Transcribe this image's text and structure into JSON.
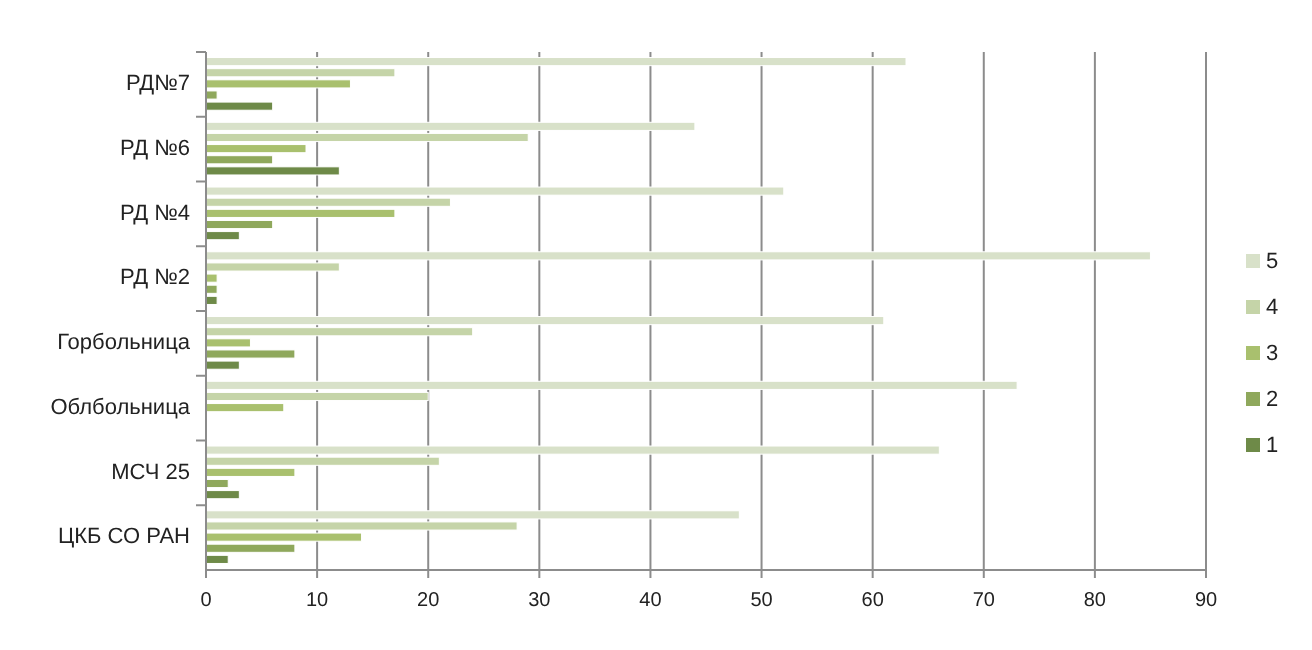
{
  "chart_data": {
    "type": "bar",
    "orientation": "horizontal",
    "categories": [
      "РД№7",
      "РД №6",
      "РД №4",
      "РД №2",
      "Горбольница",
      "Облбольница",
      "МСЧ 25",
      "ЦКБ СО РАН"
    ],
    "series": [
      {
        "name": "1",
        "color": "#6e8a48",
        "values": [
          6,
          12,
          3,
          1,
          3,
          0,
          3,
          2
        ]
      },
      {
        "name": "2",
        "color": "#8fa85c",
        "values": [
          1,
          6,
          6,
          1,
          8,
          0,
          2,
          8
        ]
      },
      {
        "name": "3",
        "color": "#a9c06e",
        "values": [
          13,
          9,
          17,
          1,
          4,
          7,
          8,
          14
        ]
      },
      {
        "name": "4",
        "color": "#c5d4a8",
        "values": [
          17,
          29,
          22,
          12,
          24,
          20,
          21,
          28
        ]
      },
      {
        "name": "5",
        "color": "#d8e1c9",
        "values": [
          63,
          44,
          52,
          85,
          61,
          73,
          66,
          48
        ]
      }
    ],
    "xlim": [
      0,
      90
    ],
    "xticks": [
      0,
      10,
      20,
      30,
      40,
      50,
      60,
      70,
      80,
      90
    ],
    "grid": "x",
    "legend": "right"
  }
}
